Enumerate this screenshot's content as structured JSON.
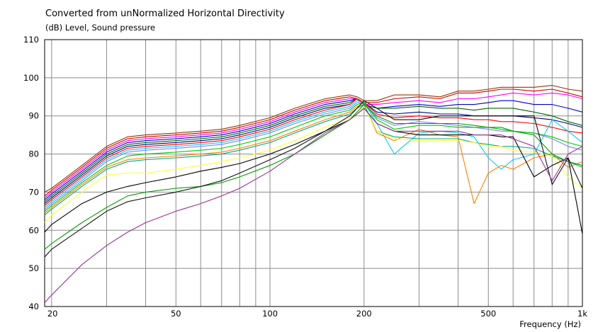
{
  "chart_data": {
    "type": "line",
    "title": "Converted from unNormalized Horizontal Directivity",
    "ylabel": "(dB)  Level, Sound pressure",
    "xlabel": "Frequency  (Hz)",
    "x_scale": "log",
    "xlim": [
      19,
      1000
    ],
    "ylim": [
      40,
      110
    ],
    "x_ticks": [
      {
        "value": 20,
        "label": "20"
      },
      {
        "value": 50,
        "label": "50"
      },
      {
        "value": 100,
        "label": "100"
      },
      {
        "value": 200,
        "label": "200"
      },
      {
        "value": 500,
        "label": "500"
      },
      {
        "value": 1000,
        "label": "1k"
      }
    ],
    "y_ticks": [
      40,
      50,
      60,
      70,
      80,
      90,
      100,
      110
    ],
    "grid": true,
    "x": [
      19,
      20,
      25,
      30,
      35,
      40,
      50,
      60,
      70,
      80,
      100,
      120,
      150,
      180,
      190,
      200,
      220,
      250,
      300,
      350,
      400,
      450,
      500,
      550,
      600,
      700,
      800,
      900,
      1000
    ],
    "series": [
      {
        "color": "#993300",
        "values": [
          70,
          71,
          77,
          82,
          84.5,
          85,
          85.5,
          86,
          86.5,
          87.5,
          89.5,
          92,
          94.5,
          95.5,
          95,
          94,
          94,
          95.5,
          95.5,
          95,
          96.5,
          96.5,
          97,
          97.5,
          97.5,
          97.5,
          98,
          97,
          96.5
        ]
      },
      {
        "color": "#cc0000",
        "values": [
          69,
          70.5,
          76.5,
          81.5,
          84,
          84.5,
          85,
          85.5,
          86,
          87,
          89,
          91.5,
          94,
          95,
          94.5,
          93.5,
          93.5,
          94.5,
          95,
          94.5,
          96,
          96,
          96.5,
          97,
          97,
          96.5,
          97,
          96,
          95
        ]
      },
      {
        "color": "#ff00ff",
        "values": [
          68.5,
          70,
          76,
          81,
          83.5,
          84,
          84.5,
          85,
          85.5,
          86.5,
          88.5,
          91,
          93.5,
          94.5,
          94.5,
          93,
          93,
          93.5,
          94,
          93.5,
          94.5,
          94.5,
          95,
          95.5,
          96,
          95.5,
          96,
          95.5,
          94.5
        ]
      },
      {
        "color": "#0000cc",
        "values": [
          68,
          69.5,
          75.5,
          80.5,
          83,
          83.5,
          84,
          84.5,
          85,
          86,
          88,
          90.5,
          93,
          94,
          94.5,
          93,
          92,
          92.5,
          93,
          92.5,
          93,
          93,
          93.5,
          94,
          94,
          93,
          93,
          92,
          91
        ]
      },
      {
        "color": "#006600",
        "values": [
          67.5,
          69,
          75,
          80,
          82.5,
          83,
          83.5,
          84,
          84.5,
          85.5,
          87.5,
          90,
          92.5,
          93.5,
          94.5,
          93,
          92,
          92,
          92.5,
          92,
          92,
          91.5,
          92,
          92,
          92,
          91,
          90,
          88.5,
          87.5
        ]
      },
      {
        "color": "#000080",
        "values": [
          67,
          68.5,
          74.5,
          79.5,
          82,
          82.5,
          83,
          83.5,
          84,
          85,
          87,
          89.5,
          92,
          93,
          94.5,
          93.5,
          91,
          90.5,
          91,
          90.5,
          90.5,
          90,
          90,
          90,
          90,
          89.5,
          89,
          88,
          87
        ]
      },
      {
        "color": "#ff0000",
        "values": [
          66.5,
          68,
          74,
          79,
          81.5,
          82,
          82.5,
          83,
          83.5,
          84.5,
          86.5,
          89,
          91.5,
          93,
          94.5,
          93.5,
          90.5,
          89.5,
          90,
          89.5,
          89.5,
          89,
          89,
          88.5,
          88.5,
          88,
          87,
          86,
          85.5
        ]
      },
      {
        "color": "#00ccff",
        "values": [
          66,
          67.5,
          73.5,
          78.5,
          81,
          81.5,
          82,
          82.5,
          83,
          84,
          86,
          88.5,
          91,
          92.5,
          94,
          93.5,
          88,
          80,
          85.5,
          86,
          85.5,
          84.5,
          79,
          76,
          78.5,
          80,
          89,
          86,
          83
        ]
      },
      {
        "color": "#8080ff",
        "values": [
          65.5,
          67,
          73,
          78,
          80.5,
          81,
          81.5,
          82,
          82.5,
          83.5,
          85.5,
          88,
          90.5,
          92,
          93.5,
          93.5,
          89.5,
          87.5,
          88.5,
          88,
          87.5,
          87,
          86.5,
          86,
          86,
          85.5,
          84,
          82,
          81
        ]
      },
      {
        "color": "#00cc00",
        "values": [
          65,
          66.5,
          72.5,
          77,
          79.5,
          80,
          80.5,
          81,
          81.5,
          82.5,
          84.5,
          87,
          90,
          91.5,
          93,
          93.5,
          89,
          86.5,
          87.5,
          87.5,
          87,
          87,
          87,
          86.5,
          86,
          85.5,
          84.5,
          83,
          82
        ]
      },
      {
        "color": "#ff8000",
        "values": [
          64.5,
          66,
          72,
          76.5,
          78.5,
          79,
          79.5,
          80,
          80.5,
          81.5,
          83.5,
          86,
          89,
          91,
          92.5,
          93,
          85.5,
          83.5,
          86.5,
          85,
          84.5,
          67,
          75,
          77,
          76,
          79,
          80,
          76.5,
          78
        ]
      },
      {
        "color": "#00aa88",
        "values": [
          64,
          65.5,
          71.5,
          76,
          78,
          78.5,
          79,
          79.5,
          80,
          81,
          83,
          85.5,
          88.5,
          90.5,
          92,
          93,
          86,
          84.5,
          84,
          84,
          84,
          83,
          82.5,
          82,
          82,
          81.5,
          79.5,
          78,
          76.5
        ]
      },
      {
        "color": "#ffff33",
        "values": [
          62,
          64,
          70,
          74.5,
          75,
          75,
          76,
          77,
          78,
          79,
          81,
          83.5,
          87,
          89.5,
          91,
          92.5,
          86,
          84,
          83.5,
          83.5,
          83.5,
          83,
          82,
          82,
          81,
          80.5,
          79.5,
          74,
          71
        ]
      },
      {
        "color": "#000000",
        "values": [
          59.5,
          61.5,
          67,
          70,
          71.5,
          72.5,
          74,
          75.5,
          76.5,
          77.5,
          80,
          82.5,
          86,
          89,
          90.5,
          92,
          88,
          86,
          85,
          85,
          85,
          85,
          85,
          84.5,
          84.5,
          74,
          77,
          79,
          59
        ]
      },
      {
        "color": "#00a000",
        "values": [
          55,
          56.5,
          62,
          66,
          69,
          70,
          71,
          71.5,
          72.5,
          74,
          77,
          80,
          85,
          89,
          91,
          93,
          90,
          88,
          88,
          88,
          88,
          87.5,
          87,
          87,
          86,
          85,
          80,
          78,
          77
        ]
      },
      {
        "color": "#111111",
        "values": [
          53,
          55,
          60.5,
          65,
          67.5,
          68.5,
          70,
          71.5,
          73,
          75,
          78.5,
          81.5,
          86,
          90,
          92,
          94,
          92,
          89,
          89,
          90,
          90,
          90,
          90,
          90,
          90,
          90,
          72,
          79,
          71
        ]
      },
      {
        "color": "#993399",
        "values": [
          41,
          43,
          51,
          56,
          59.5,
          62,
          65,
          67,
          69,
          71,
          75.5,
          80,
          85.5,
          89,
          90.5,
          92,
          88,
          86,
          86,
          86,
          86,
          85,
          85,
          85,
          84,
          82,
          73,
          80,
          82
        ]
      }
    ]
  }
}
